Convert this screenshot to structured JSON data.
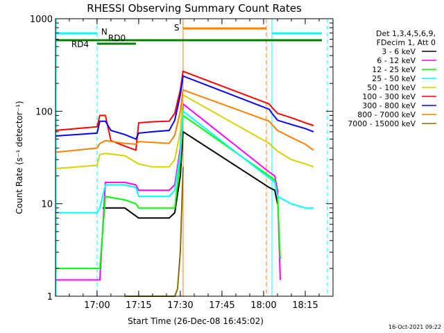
{
  "chart_data": {
    "type": "line",
    "title": "RHESSI Observing Summary Count Rates",
    "xlabel": "Start Time (26-Dec-08 16:45:02)",
    "ylabel": "Count Rate (s⁻¹ detector⁻¹)",
    "y_scale": "log",
    "ylim": [
      1,
      1000
    ],
    "xlim": [
      "16:45:02",
      "18:25:00"
    ],
    "x_ticks": [
      "17:00",
      "17:15",
      "17:30",
      "17:45",
      "18:00",
      "18:15"
    ],
    "y_ticks": [
      "1",
      "10",
      "100",
      "1000"
    ],
    "grid": false,
    "legend_header": [
      "Det 1,3,4,5,6,9,",
      "FDecim 1, Att 0"
    ],
    "legend_position": "right",
    "timestamp": "16-Oct-2021 09:22",
    "series": [
      {
        "name": "3 - 6 keV",
        "color": "#000000",
        "x": [
          "17:02",
          "17:10",
          "17:15",
          "17:20",
          "17:26",
          "17:28",
          "17:30",
          "17:31",
          "18:02",
          "18:04",
          "18:05"
        ],
        "y": [
          9,
          9,
          7,
          7,
          7,
          8,
          20,
          60,
          15,
          14,
          10
        ]
      },
      {
        "name": "6 - 12 keV",
        "color": "#ff00ff",
        "x": [
          "16:45",
          "17:00",
          "17:01",
          "17:03",
          "17:10",
          "17:14",
          "17:15",
          "17:20",
          "17:26",
          "17:28",
          "17:30",
          "17:31",
          "18:02",
          "18:04",
          "18:05",
          "18:06"
        ],
        "y": [
          1.5,
          1.5,
          1.5,
          17,
          17,
          16,
          14,
          14,
          14,
          16,
          40,
          120,
          22,
          20,
          14,
          1.5
        ]
      },
      {
        "name": "12 - 25 keV",
        "color": "#00ff00",
        "x": [
          "16:45",
          "17:00",
          "17:01",
          "17:03",
          "17:10",
          "17:14",
          "17:15",
          "17:20",
          "17:26",
          "17:28",
          "17:30",
          "17:31",
          "18:02",
          "18:04",
          "18:05",
          "18:06"
        ],
        "y": [
          2,
          2,
          2,
          12,
          11,
          10,
          9,
          9,
          9,
          9,
          30,
          90,
          20,
          18,
          12,
          2.5
        ]
      },
      {
        "name": "25 - 50 keV",
        "color": "#00ffff",
        "x": [
          "16:45",
          "17:00",
          "17:01",
          "17:03",
          "17:10",
          "17:14",
          "17:15",
          "17:20",
          "17:26",
          "17:28",
          "17:30",
          "17:31",
          "18:02",
          "18:04",
          "18:05",
          "18:10",
          "18:15",
          "18:18"
        ],
        "y": [
          8,
          8,
          9,
          16,
          16,
          15,
          12,
          12,
          12,
          14,
          35,
          100,
          19,
          17,
          12,
          10,
          9,
          9
        ]
      },
      {
        "name": "50 - 100 keV",
        "color": "#d4d400",
        "x": [
          "16:45",
          "17:00",
          "17:01",
          "17:03",
          "17:10",
          "17:14",
          "17:15",
          "17:20",
          "17:26",
          "17:28",
          "17:30",
          "17:31",
          "18:02",
          "18:03",
          "18:05",
          "18:10",
          "18:15",
          "18:18"
        ],
        "y": [
          24,
          26,
          34,
          35,
          33,
          28,
          27,
          25,
          25,
          30,
          60,
          150,
          45,
          42,
          37,
          30,
          27,
          25
        ]
      },
      {
        "name": "100 - 300 keV",
        "color": "#ff0000",
        "x": [
          "16:45",
          "17:00",
          "17:01",
          "17:03",
          "17:05",
          "17:10",
          "17:14",
          "17:15",
          "17:20",
          "17:26",
          "17:28",
          "17:30",
          "17:31",
          "18:02",
          "18:03",
          "18:05",
          "18:10",
          "18:15",
          "18:18"
        ],
        "y": [
          62,
          68,
          90,
          90,
          48,
          42,
          38,
          75,
          77,
          78,
          95,
          170,
          270,
          120,
          110,
          95,
          85,
          75,
          70
        ]
      },
      {
        "name": "300 - 800 keV",
        "color": "#0000ff",
        "x": [
          "16:45",
          "17:00",
          "17:01",
          "17:03",
          "17:05",
          "17:10",
          "17:14",
          "17:15",
          "17:20",
          "17:26",
          "17:28",
          "17:30",
          "17:31",
          "18:02",
          "18:03",
          "18:05",
          "18:10",
          "18:15",
          "18:18"
        ],
        "y": [
          54,
          58,
          78,
          78,
          62,
          56,
          50,
          58,
          60,
          62,
          80,
          150,
          240,
          105,
          95,
          80,
          72,
          65,
          60
        ]
      },
      {
        "name": "800 - 7000 keV",
        "color": "#ff8000",
        "x": [
          "16:45",
          "17:00",
          "17:01",
          "17:03",
          "17:10",
          "17:14",
          "17:15",
          "17:20",
          "17:26",
          "17:28",
          "17:30",
          "17:31",
          "18:02",
          "18:03",
          "18:05",
          "18:10",
          "18:15",
          "18:18"
        ],
        "y": [
          36,
          40,
          45,
          48,
          45,
          44,
          47,
          46,
          45,
          55,
          100,
          170,
          78,
          72,
          62,
          52,
          44,
          38
        ]
      },
      {
        "name": "7000 - 15000 keV",
        "color": "#807000",
        "x": [
          "17:10",
          "17:20",
          "17:26",
          "17:28",
          "17:29",
          "17:30",
          "17:31"
        ],
        "y": [
          1,
          1,
          1,
          1,
          1.2,
          3,
          25
        ]
      }
    ],
    "annotations": {
      "saa_label": "S",
      "night_label": "N",
      "rd0_label": "RD0",
      "rd4_label": "RD4"
    }
  }
}
